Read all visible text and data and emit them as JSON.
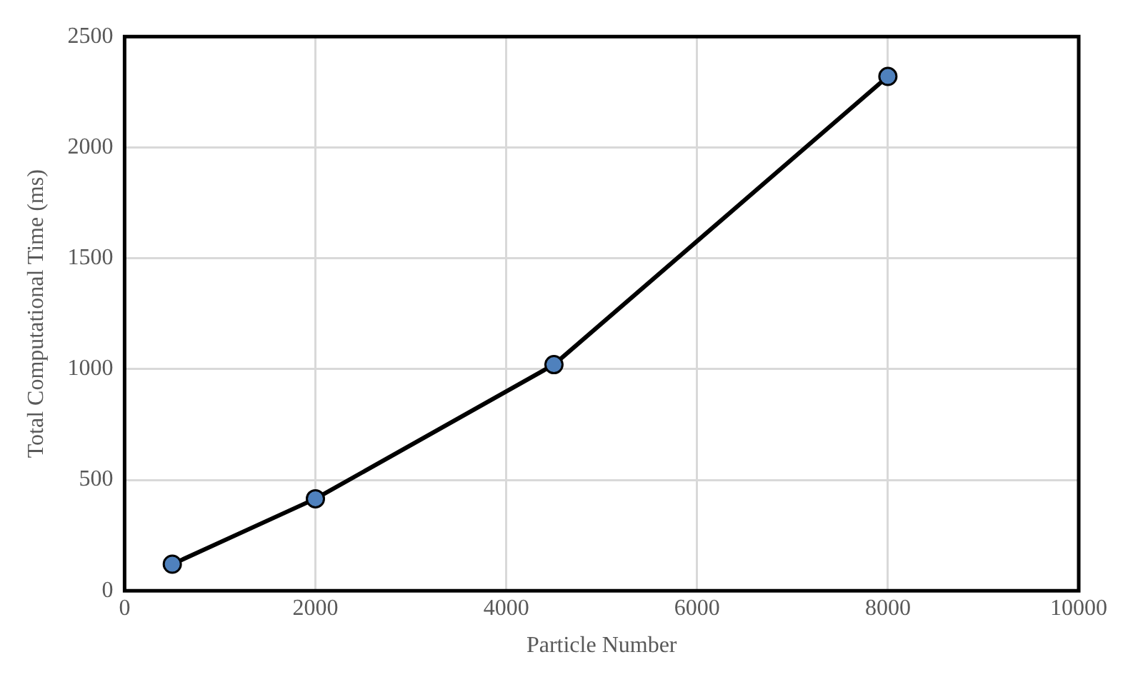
{
  "chart_data": {
    "type": "line",
    "xlabel": "Particle Number",
    "ylabel": "Total Computational Time (ms)",
    "x": [
      500,
      2000,
      4500,
      8000
    ],
    "series": [
      {
        "color": "#4f81bd",
        "values": [
          120,
          415,
          1020,
          2320
        ]
      }
    ],
    "xlim": [
      0,
      10000
    ],
    "xticks": [
      0,
      2000,
      4000,
      6000,
      8000,
      10000
    ],
    "ylim": [
      0,
      2500
    ],
    "yticks": [
      0,
      500,
      1000,
      1500,
      2000,
      2500
    ],
    "grid": true,
    "marker": "circle",
    "line_style": "solid",
    "legend": false
  }
}
